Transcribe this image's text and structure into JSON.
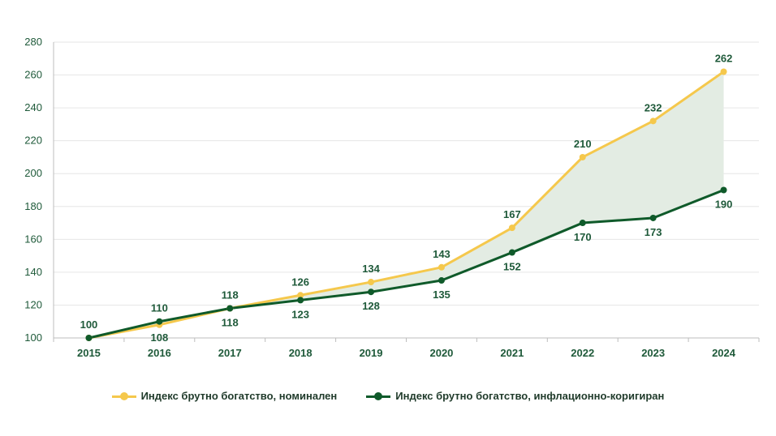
{
  "colors": {
    "nominal": "#f5c84c",
    "real": "#0f5a2a",
    "fill": "#e3ece3",
    "grid": "#e6e6e6",
    "axis": "#bdbdbd",
    "text": "#1f5a3a"
  },
  "chart_data": {
    "type": "line",
    "x": [
      "2015",
      "2016",
      "2017",
      "2018",
      "2019",
      "2020",
      "2021",
      "2022",
      "2023",
      "2024"
    ],
    "ylim": [
      100,
      280
    ],
    "yticks": [
      100,
      120,
      140,
      160,
      180,
      200,
      220,
      240,
      260,
      280
    ],
    "grid": true,
    "legend_position": "bottom",
    "shaded_between_series": true,
    "series": [
      {
        "name": "Индекс брутно богатство, номинален",
        "values": [
          100,
          108,
          118,
          126,
          134,
          143,
          167,
          210,
          232,
          262
        ]
      },
      {
        "name": "Индекс брутно богатство, инфлационно-коригиран",
        "values": [
          100,
          110,
          118,
          123,
          128,
          135,
          152,
          170,
          173,
          190
        ]
      }
    ]
  }
}
